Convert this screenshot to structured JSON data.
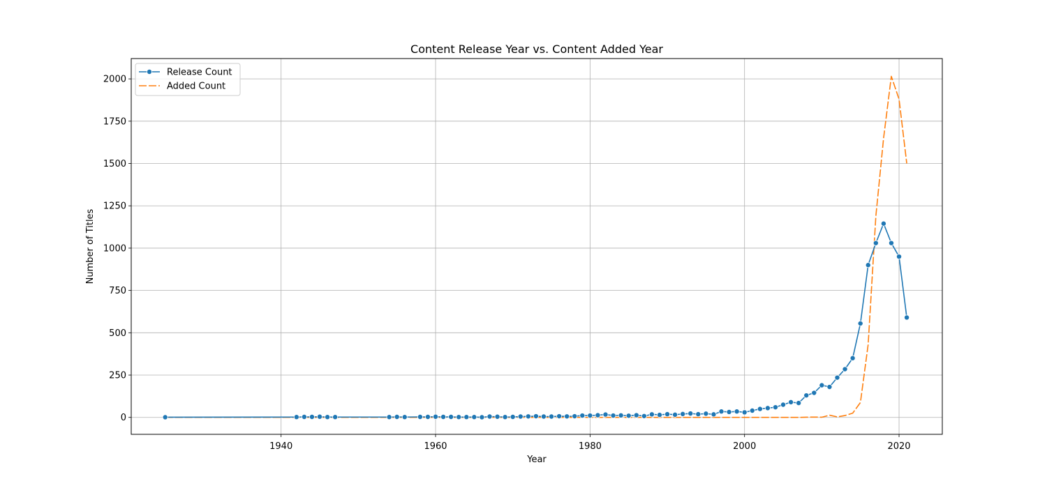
{
  "chart_data": {
    "type": "line",
    "title": "Content Release Year vs. Content Added Year",
    "xlabel": "Year",
    "ylabel": "Number of Titles",
    "xlim": [
      1920.6,
      2025.6
    ],
    "ylim": [
      -100,
      2120
    ],
    "xticks": [
      1940,
      1960,
      1980,
      2000,
      2020
    ],
    "yticks": [
      0,
      250,
      500,
      750,
      1000,
      1250,
      1500,
      1750,
      2000
    ],
    "grid": true,
    "legend_position": "top-left",
    "series": [
      {
        "name": "Release Count",
        "color": "#1f77b4",
        "style": "solid",
        "marker": "circle",
        "x": [
          1925,
          1942,
          1943,
          1944,
          1945,
          1946,
          1947,
          1954,
          1955,
          1956,
          1958,
          1959,
          1960,
          1961,
          1962,
          1963,
          1964,
          1965,
          1966,
          1967,
          1968,
          1969,
          1970,
          1971,
          1972,
          1973,
          1974,
          1975,
          1976,
          1977,
          1978,
          1979,
          1980,
          1981,
          1982,
          1983,
          1984,
          1985,
          1986,
          1987,
          1988,
          1989,
          1990,
          1991,
          1992,
          1993,
          1994,
          1995,
          1996,
          1997,
          1998,
          1999,
          2000,
          2001,
          2002,
          2003,
          2004,
          2005,
          2006,
          2007,
          2008,
          2009,
          2010,
          2011,
          2012,
          2013,
          2014,
          2015,
          2016,
          2017,
          2018,
          2019,
          2020,
          2021
        ],
        "y": [
          1,
          2,
          3,
          3,
          4,
          2,
          2,
          2,
          3,
          2,
          3,
          3,
          4,
          3,
          3,
          2,
          2,
          2,
          1,
          5,
          4,
          2,
          3,
          5,
          6,
          7,
          5,
          5,
          7,
          6,
          7,
          11,
          11,
          13,
          17,
          11,
          12,
          10,
          13,
          8,
          18,
          15,
          19,
          16,
          20,
          23,
          19,
          22,
          18,
          35,
          32,
          35,
          30,
          40,
          50,
          55,
          60,
          75,
          90,
          85,
          130,
          145,
          190,
          180,
          235,
          285,
          350,
          555,
          900,
          1030,
          1145,
          1030,
          950,
          590
        ]
      },
      {
        "name": "Added Count",
        "color": "#ff7f0e",
        "style": "dashed",
        "marker": "none",
        "x": [
          1925,
          1942,
          1943,
          1944,
          1945,
          1946,
          1947,
          1954,
          1955,
          1956,
          1958,
          1959,
          1960,
          1961,
          1962,
          1963,
          1964,
          1965,
          1966,
          1967,
          1968,
          1969,
          1970,
          1971,
          1972,
          1973,
          1974,
          1975,
          1976,
          1977,
          1978,
          1979,
          1980,
          1981,
          1982,
          1983,
          1984,
          1985,
          1986,
          1987,
          1988,
          1989,
          1990,
          1991,
          1992,
          1993,
          1994,
          1995,
          1996,
          1997,
          1998,
          1999,
          2000,
          2001,
          2002,
          2003,
          2004,
          2005,
          2006,
          2007,
          2008,
          2009,
          2010,
          2011,
          2012,
          2013,
          2014,
          2015,
          2016,
          2017,
          2018,
          2019,
          2020,
          2021
        ],
        "y": [
          0,
          0,
          0,
          0,
          0,
          0,
          0,
          0,
          0,
          0,
          0,
          0,
          0,
          0,
          0,
          0,
          0,
          0,
          0,
          0,
          0,
          0,
          0,
          0,
          0,
          0,
          0,
          0,
          0,
          0,
          0,
          0,
          0,
          0,
          0,
          0,
          0,
          0,
          0,
          0,
          0,
          0,
          0,
          0,
          0,
          0,
          0,
          0,
          0,
          0,
          0,
          0,
          0,
          0,
          0,
          0,
          0,
          0,
          0,
          0,
          1,
          2,
          1,
          13,
          3,
          11,
          25,
          88,
          430,
          1190,
          1650,
          2015,
          1880,
          1500
        ]
      }
    ]
  }
}
